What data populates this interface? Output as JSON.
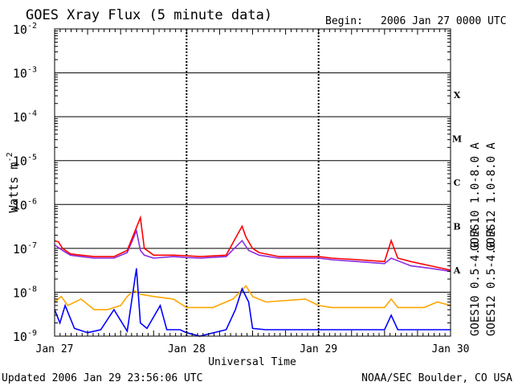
{
  "chart_data": {
    "type": "line",
    "title": "GOES Xray Flux (5 minute data)",
    "begin_label": "Begin:",
    "begin_value": "2006 Jan 27 0000 UTC",
    "xlabel": "Universal Time",
    "ylabel": "Watts m",
    "ylabel_exp": "-2",
    "x_ticks": [
      "Jan 27",
      "Jan 28",
      "Jan 29",
      "Jan 30"
    ],
    "xlim": [
      "Jan 27",
      "Jan 30"
    ],
    "yscale": "log",
    "ylim": [
      1e-09,
      0.01
    ],
    "y_tick_bases": [
      "10",
      "10",
      "10",
      "10",
      "10",
      "10",
      "10",
      "10"
    ],
    "y_tick_exps": [
      "-2",
      "-3",
      "-4",
      "-5",
      "-6",
      "-7",
      "-8",
      "-9"
    ],
    "flare_classes": [
      "X",
      "M",
      "C",
      "B",
      "A"
    ],
    "legend": {
      "right_col1_top": "GOES10 1.0-8.0 A",
      "right_col1_bottom": "GOES10 0.5-4.0 A",
      "right_col2_top": "GOES12 1.0-8.0 A",
      "right_col2_bottom": "GOES12 0.5-4.0 A"
    },
    "colors": {
      "goes10_long": "#8a2be2",
      "goes12_long": "#ff0000",
      "goes10_short": "#ffa500",
      "goes12_short": "#0000ff"
    },
    "grid": "horizontal lines at each decade; dashed verticals at day boundaries",
    "series": [
      {
        "name": "GOES10 1.0-8.0 A",
        "x_days": [
          0,
          0.06,
          0.12,
          0.2,
          0.3,
          0.45,
          0.55,
          0.62,
          0.65,
          0.68,
          0.75,
          0.9,
          1.0,
          1.1,
          1.3,
          1.42,
          1.47,
          1.55,
          1.7,
          1.9,
          2.0,
          2.1,
          2.3,
          2.5,
          2.55,
          2.7,
          2.85,
          3.0
        ],
        "y": [
          1.2e-07,
          9e-08,
          7e-08,
          6.5e-08,
          6e-08,
          6e-08,
          8e-08,
          2.5e-07,
          9e-08,
          7e-08,
          6e-08,
          6.5e-08,
          6.2e-08,
          6e-08,
          6.5e-08,
          1.5e-07,
          9e-08,
          7e-08,
          6e-08,
          6e-08,
          6e-08,
          5.5e-08,
          5e-08,
          4.5e-08,
          6e-08,
          4e-08,
          3.5e-08,
          3e-08
        ]
      },
      {
        "name": "GOES12 1.0-8.0 A",
        "x_days": [
          0,
          0.03,
          0.06,
          0.12,
          0.2,
          0.3,
          0.45,
          0.55,
          0.65,
          0.68,
          0.75,
          0.9,
          1.0,
          1.1,
          1.3,
          1.42,
          1.45,
          1.5,
          1.55,
          1.7,
          1.9,
          2.0,
          2.1,
          2.3,
          2.5,
          2.55,
          2.6,
          2.7,
          2.85,
          3.0
        ],
        "y": [
          1.5e-07,
          1.4e-07,
          1e-07,
          7.5e-08,
          7e-08,
          6.5e-08,
          6.5e-08,
          9e-08,
          5e-07,
          1e-07,
          7e-08,
          7e-08,
          6.8e-08,
          6.5e-08,
          7e-08,
          3.2e-07,
          1.8e-07,
          1e-07,
          8e-08,
          6.5e-08,
          6.5e-08,
          6.5e-08,
          6e-08,
          5.5e-08,
          5e-08,
          1.5e-07,
          6e-08,
          5e-08,
          4e-08,
          3.2e-08
        ]
      },
      {
        "name": "GOES10 0.5-4.0 A",
        "x_days": [
          0,
          0.05,
          0.1,
          0.2,
          0.3,
          0.4,
          0.5,
          0.55,
          0.6,
          0.65,
          0.75,
          0.9,
          1.0,
          1.2,
          1.35,
          1.45,
          1.5,
          1.6,
          1.9,
          2.0,
          2.1,
          2.3,
          2.5,
          2.55,
          2.6,
          2.8,
          2.9,
          3.0
        ],
        "y": [
          6e-09,
          8e-09,
          5e-09,
          7e-09,
          4e-09,
          4e-09,
          5e-09,
          8e-09,
          1.1e-08,
          9e-09,
          8e-09,
          7e-09,
          4.5e-09,
          4.5e-09,
          7e-09,
          1.4e-08,
          8e-09,
          6e-09,
          7e-09,
          5e-09,
          4.5e-09,
          4.5e-09,
          4.5e-09,
          7e-09,
          4.5e-09,
          4.5e-09,
          6e-09,
          5e-09
        ]
      },
      {
        "name": "GOES12 0.5-4.0 A",
        "x_days": [
          0,
          0.04,
          0.08,
          0.15,
          0.25,
          0.35,
          0.45,
          0.55,
          0.62,
          0.65,
          0.7,
          0.8,
          0.85,
          0.95,
          1.0,
          1.1,
          1.3,
          1.37,
          1.42,
          1.47,
          1.5,
          1.6,
          1.9,
          2.0,
          2.5,
          2.55,
          2.6,
          3.0
        ],
        "y": [
          4e-09,
          2e-09,
          5e-09,
          1.5e-09,
          1.2e-09,
          1.4e-09,
          4e-09,
          1.3e-09,
          3.5e-08,
          2e-09,
          1.5e-09,
          5e-09,
          1.4e-09,
          1.4e-09,
          1.2e-09,
          1e-09,
          1.4e-09,
          4e-09,
          1.2e-08,
          6e-09,
          1.5e-09,
          1.4e-09,
          1.4e-09,
          1.4e-09,
          1.4e-09,
          3e-09,
          1.4e-09,
          1.4e-09
        ]
      }
    ]
  },
  "footer": {
    "updated": "Updated 2006 Jan 29 23:56:06 UTC",
    "source": "NOAA/SEC Boulder, CO USA"
  }
}
